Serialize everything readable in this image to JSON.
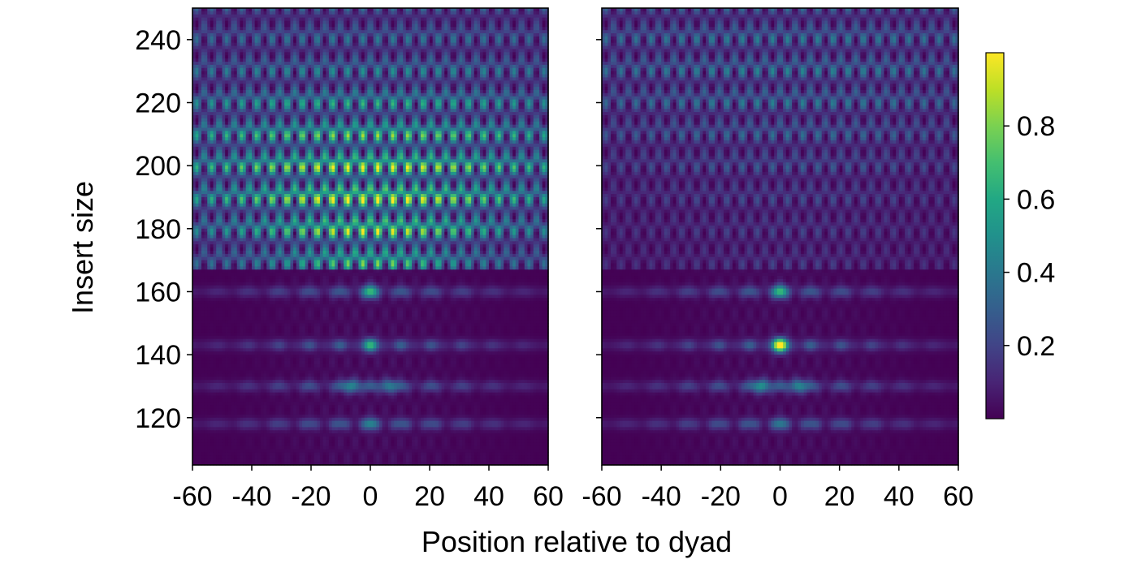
{
  "chart_data": {
    "type": "heatmap",
    "xlabel": "Position relative to dyad",
    "ylabel": "Insert size",
    "xlim": [
      -60,
      60
    ],
    "ylim": [
      105,
      250
    ],
    "xticks": [
      -60,
      -40,
      -20,
      0,
      20,
      40,
      60
    ],
    "yticks": [
      120,
      140,
      160,
      180,
      200,
      220,
      240
    ],
    "colorbar": {
      "colormap": "viridis",
      "range": [
        0,
        1
      ],
      "ticks": [
        0.2,
        0.4,
        0.6,
        0.8
      ],
      "tick_labels": [
        "0.2",
        "0.4",
        "0.6",
        "0.8"
      ]
    },
    "panels": [
      {
        "name": "left",
        "cutoff_insert": 167,
        "v_pattern_peak": 0.98,
        "v_pattern_peak_insert": 190,
        "peaks": [
          {
            "x": 0,
            "y": 160,
            "value": 0.45
          },
          {
            "x": 0,
            "y": 143,
            "value": 0.4
          },
          {
            "x": -6,
            "y": 130,
            "value": 0.4
          },
          {
            "x": 6,
            "y": 130,
            "value": 0.35
          },
          {
            "x": 0,
            "y": 118,
            "value": 0.2
          }
        ]
      },
      {
        "name": "right",
        "cutoff_insert": 167,
        "v_pattern_peak": 0.35,
        "v_pattern_peak_insert": 230,
        "peaks": [
          {
            "x": 0,
            "y": 160,
            "value": 0.45
          },
          {
            "x": 0,
            "y": 143,
            "value": 0.95
          },
          {
            "x": -6,
            "y": 130,
            "value": 0.45
          },
          {
            "x": 6,
            "y": 130,
            "value": 0.4
          },
          {
            "x": 0,
            "y": 118,
            "value": 0.15
          }
        ]
      }
    ]
  }
}
